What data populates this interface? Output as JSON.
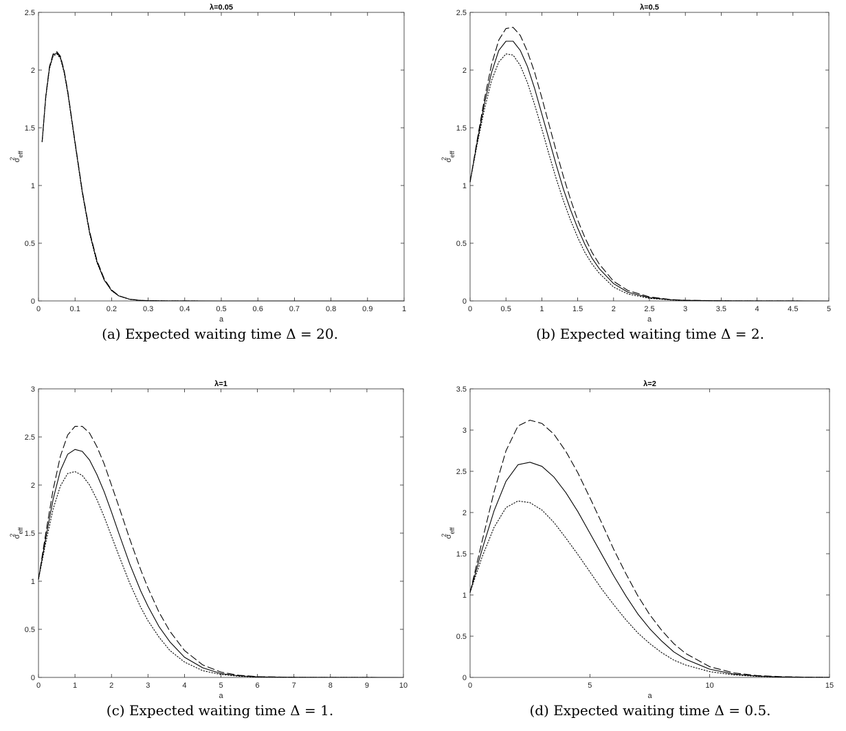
{
  "figures": [
    {
      "caption": "(a)  Expected waiting time Δ = 20.",
      "chart_data": {
        "type": "line",
        "title": "λ=0.05",
        "xlabel": "a",
        "ylabel": "σ",
        "ylabel_sup": "2",
        "ylabel_sub": "eff",
        "xlim": [
          0,
          1
        ],
        "ylim": [
          0,
          2.5
        ],
        "xticks": [
          0,
          0.1,
          0.2,
          0.3,
          0.4,
          0.5,
          0.6,
          0.7,
          0.8,
          0.9,
          1
        ],
        "xticklabels": [
          "0",
          "0.1",
          "0.2",
          "0.3",
          "0.4",
          "0.5",
          "0.6",
          "0.7",
          "0.8",
          "0.9",
          "1"
        ],
        "yticks": [
          0,
          0.5,
          1,
          1.5,
          2,
          2.5
        ],
        "yticklabels": [
          "0",
          "0.5",
          "1",
          "1.5",
          "2",
          "2.5"
        ],
        "grid": false,
        "series": [
          {
            "style": "dashed",
            "x": [
              0.01,
              0.02,
              0.03,
              0.04,
              0.05,
              0.06,
              0.07,
              0.08,
              0.1,
              0.12,
              0.14,
              0.16,
              0.18,
              0.2,
              0.22,
              0.25,
              0.28,
              0.3,
              0.35,
              0.4,
              0.5,
              0.7,
              1.0
            ],
            "y": [
              1.38,
              1.78,
              2.03,
              2.14,
              2.16,
              2.12,
              2.0,
              1.82,
              1.38,
              0.95,
              0.6,
              0.35,
              0.19,
              0.095,
              0.045,
              0.015,
              0.005,
              0.002,
              0.0005,
              0.0001,
              0,
              0,
              0
            ]
          },
          {
            "style": "solid",
            "x": [
              0.01,
              0.02,
              0.03,
              0.04,
              0.05,
              0.06,
              0.07,
              0.08,
              0.1,
              0.12,
              0.14,
              0.16,
              0.18,
              0.2,
              0.22,
              0.25,
              0.28,
              0.3,
              0.35,
              0.4,
              0.5,
              0.7,
              1.0
            ],
            "y": [
              1.38,
              1.77,
              2.02,
              2.13,
              2.15,
              2.11,
              1.99,
              1.81,
              1.37,
              0.94,
              0.59,
              0.34,
              0.18,
              0.09,
              0.043,
              0.014,
              0.004,
              0.002,
              0.0005,
              0.0001,
              0,
              0,
              0
            ]
          },
          {
            "style": "dotted",
            "x": [
              0.01,
              0.02,
              0.03,
              0.04,
              0.05,
              0.06,
              0.07,
              0.08,
              0.1,
              0.12,
              0.14,
              0.16,
              0.18,
              0.2,
              0.22,
              0.25,
              0.28,
              0.3,
              0.35,
              0.4,
              0.5,
              0.7,
              1.0
            ],
            "y": [
              1.38,
              1.76,
              2.01,
              2.12,
              2.14,
              2.1,
              1.98,
              1.8,
              1.36,
              0.93,
              0.58,
              0.33,
              0.18,
              0.088,
              0.042,
              0.013,
              0.004,
              0.002,
              0.0005,
              0.0001,
              0,
              0,
              0
            ]
          }
        ]
      }
    },
    {
      "caption": "(b)  Expected waiting time Δ = 2.",
      "chart_data": {
        "type": "line",
        "title": "λ=0.5",
        "xlabel": "a",
        "ylabel": "σ",
        "ylabel_sup": "2",
        "ylabel_sub": "eff",
        "xlim": [
          0,
          5
        ],
        "ylim": [
          0,
          2.5
        ],
        "xticks": [
          0,
          0.5,
          1,
          1.5,
          2,
          2.5,
          3,
          3.5,
          4,
          4.5,
          5
        ],
        "xticklabels": [
          "0",
          "0.5",
          "1",
          "1.5",
          "2",
          "2.5",
          "3",
          "3.5",
          "4",
          "4.5",
          "5"
        ],
        "yticks": [
          0,
          0.5,
          1,
          1.5,
          2,
          2.5
        ],
        "yticklabels": [
          "0",
          "0.5",
          "1",
          "1.5",
          "2",
          "2.5"
        ],
        "grid": false,
        "series": [
          {
            "style": "dashed",
            "x": [
              0,
              0.1,
              0.2,
              0.3,
              0.4,
              0.5,
              0.6,
              0.7,
              0.8,
              0.9,
              1.0,
              1.1,
              1.2,
              1.3,
              1.4,
              1.5,
              1.6,
              1.7,
              1.8,
              2.0,
              2.2,
              2.5,
              2.8,
              3.0,
              3.5,
              4.0,
              5.0
            ],
            "y": [
              1.03,
              1.4,
              1.75,
              2.05,
              2.26,
              2.36,
              2.37,
              2.3,
              2.16,
              1.98,
              1.76,
              1.53,
              1.3,
              1.08,
              0.88,
              0.7,
              0.55,
              0.42,
              0.32,
              0.17,
              0.09,
              0.035,
              0.012,
              0.006,
              0.001,
              0.0002,
              0
            ]
          },
          {
            "style": "solid",
            "x": [
              0,
              0.1,
              0.2,
              0.3,
              0.4,
              0.5,
              0.6,
              0.7,
              0.8,
              0.9,
              1.0,
              1.1,
              1.2,
              1.3,
              1.4,
              1.5,
              1.6,
              1.7,
              1.8,
              2.0,
              2.2,
              2.5,
              2.8,
              3.0,
              3.5,
              4.0,
              5.0
            ],
            "y": [
              1.03,
              1.38,
              1.71,
              1.98,
              2.17,
              2.25,
              2.25,
              2.17,
              2.03,
              1.84,
              1.62,
              1.4,
              1.18,
              0.97,
              0.79,
              0.63,
              0.49,
              0.37,
              0.28,
              0.15,
              0.075,
              0.028,
              0.01,
              0.005,
              0.001,
              0.0002,
              0
            ]
          },
          {
            "style": "dotted",
            "x": [
              0,
              0.1,
              0.2,
              0.3,
              0.4,
              0.5,
              0.6,
              0.7,
              0.8,
              0.9,
              1.0,
              1.1,
              1.2,
              1.3,
              1.4,
              1.5,
              1.6,
              1.7,
              1.8,
              2.0,
              2.2,
              2.5,
              2.8,
              3.0,
              3.5,
              4.0,
              5.0
            ],
            "y": [
              1.03,
              1.36,
              1.66,
              1.91,
              2.07,
              2.14,
              2.13,
              2.04,
              1.89,
              1.7,
              1.49,
              1.27,
              1.06,
              0.87,
              0.7,
              0.55,
              0.42,
              0.32,
              0.24,
              0.12,
              0.06,
              0.022,
              0.008,
              0.004,
              0.001,
              0.0002,
              0
            ]
          }
        ]
      }
    },
    {
      "caption": "(c)  Expected waiting time Δ = 1.",
      "chart_data": {
        "type": "line",
        "title": "λ=1",
        "xlabel": "a",
        "ylabel": "σ",
        "ylabel_sup": "2",
        "ylabel_sub": "eff",
        "xlim": [
          0,
          10
        ],
        "ylim": [
          0,
          3
        ],
        "xticks": [
          0,
          1,
          2,
          3,
          4,
          5,
          6,
          7,
          8,
          9,
          10
        ],
        "xticklabels": [
          "0",
          "1",
          "2",
          "3",
          "4",
          "5",
          "6",
          "7",
          "8",
          "9",
          "10"
        ],
        "yticks": [
          0,
          0.5,
          1,
          1.5,
          2,
          2.5,
          3
        ],
        "yticklabels": [
          "0",
          "0.5",
          "1",
          "1.5",
          "2",
          "2.5",
          "3"
        ],
        "grid": false,
        "series": [
          {
            "style": "dashed",
            "x": [
              0,
              0.2,
              0.4,
              0.6,
              0.8,
              1.0,
              1.2,
              1.4,
              1.6,
              1.8,
              2.0,
              2.2,
              2.5,
              2.8,
              3.0,
              3.3,
              3.6,
              4.0,
              4.5,
              5.0,
              5.5,
              6.0,
              7.0,
              8.0,
              10.0
            ],
            "y": [
              1.02,
              1.5,
              1.95,
              2.3,
              2.52,
              2.61,
              2.61,
              2.54,
              2.4,
              2.22,
              2.0,
              1.78,
              1.44,
              1.12,
              0.93,
              0.68,
              0.48,
              0.28,
              0.13,
              0.055,
              0.022,
              0.008,
              0.001,
              0.0002,
              0
            ]
          },
          {
            "style": "solid",
            "x": [
              0,
              0.2,
              0.4,
              0.6,
              0.8,
              1.0,
              1.2,
              1.4,
              1.6,
              1.8,
              2.0,
              2.2,
              2.5,
              2.8,
              3.0,
              3.3,
              3.6,
              4.0,
              4.5,
              5.0,
              5.5,
              6.0,
              7.0,
              8.0,
              10.0
            ],
            "y": [
              1.02,
              1.45,
              1.85,
              2.15,
              2.32,
              2.37,
              2.35,
              2.26,
              2.11,
              1.93,
              1.72,
              1.5,
              1.18,
              0.9,
              0.74,
              0.53,
              0.37,
              0.21,
              0.1,
              0.04,
              0.016,
              0.006,
              0.001,
              0.0002,
              0
            ]
          },
          {
            "style": "dotted",
            "x": [
              0,
              0.2,
              0.4,
              0.6,
              0.8,
              1.0,
              1.2,
              1.4,
              1.6,
              1.8,
              2.0,
              2.2,
              2.5,
              2.8,
              3.0,
              3.3,
              3.6,
              4.0,
              4.5,
              5.0,
              5.5,
              6.0,
              7.0,
              8.0,
              10.0
            ],
            "y": [
              1.02,
              1.4,
              1.75,
              1.99,
              2.12,
              2.14,
              2.1,
              2.0,
              1.85,
              1.67,
              1.47,
              1.27,
              0.98,
              0.73,
              0.59,
              0.42,
              0.28,
              0.16,
              0.07,
              0.03,
              0.012,
              0.004,
              0.001,
              0.0002,
              0
            ]
          }
        ]
      }
    },
    {
      "caption": "(d)  Expected waiting time Δ = 0.5.",
      "chart_data": {
        "type": "line",
        "title": "λ=2",
        "xlabel": "a",
        "ylabel": "σ",
        "ylabel_sup": "2",
        "ylabel_sub": "eff",
        "xlim": [
          0,
          15
        ],
        "ylim": [
          0,
          3.5
        ],
        "xticks": [
          0,
          5,
          10,
          15
        ],
        "xticklabels": [
          "0",
          "5",
          "10",
          "15"
        ],
        "yticks": [
          0,
          0.5,
          1,
          1.5,
          2,
          2.5,
          3,
          3.5
        ],
        "yticklabels": [
          "0",
          "0.5",
          "1",
          "1.5",
          "2",
          "2.5",
          "3",
          "3.5"
        ],
        "grid": false,
        "series": [
          {
            "style": "dashed",
            "x": [
              0,
              0.5,
              1.0,
              1.5,
              2.0,
              2.5,
              3.0,
              3.5,
              4.0,
              4.5,
              5.0,
              5.5,
              6.0,
              6.5,
              7.0,
              7.5,
              8.0,
              8.5,
              9.0,
              10.0,
              11.0,
              12.0,
              13.0,
              14.0,
              15.0
            ],
            "y": [
              1.03,
              1.65,
              2.25,
              2.75,
              3.05,
              3.12,
              3.08,
              2.95,
              2.74,
              2.48,
              2.18,
              1.87,
              1.55,
              1.26,
              0.99,
              0.76,
              0.57,
              0.41,
              0.29,
              0.13,
              0.055,
              0.022,
              0.009,
              0.003,
              0.001
            ]
          },
          {
            "style": "solid",
            "x": [
              0,
              0.5,
              1.0,
              1.5,
              2.0,
              2.5,
              3.0,
              3.5,
              4.0,
              4.5,
              5.0,
              5.5,
              6.0,
              6.5,
              7.0,
              7.5,
              8.0,
              8.5,
              9.0,
              10.0,
              11.0,
              12.0,
              13.0,
              14.0,
              15.0
            ],
            "y": [
              1.03,
              1.55,
              2.02,
              2.38,
              2.58,
              2.61,
              2.56,
              2.43,
              2.24,
              2.01,
              1.75,
              1.49,
              1.23,
              0.99,
              0.77,
              0.59,
              0.44,
              0.31,
              0.22,
              0.1,
              0.04,
              0.016,
              0.006,
              0.002,
              0.001
            ]
          },
          {
            "style": "dotted",
            "x": [
              0,
              0.5,
              1.0,
              1.5,
              2.0,
              2.5,
              3.0,
              3.5,
              4.0,
              4.5,
              5.0,
              5.5,
              6.0,
              6.5,
              7.0,
              7.5,
              8.0,
              8.5,
              9.0,
              10.0,
              11.0,
              12.0,
              13.0,
              14.0,
              15.0
            ],
            "y": [
              1.03,
              1.46,
              1.82,
              2.06,
              2.14,
              2.12,
              2.03,
              1.88,
              1.69,
              1.49,
              1.28,
              1.07,
              0.88,
              0.7,
              0.54,
              0.41,
              0.3,
              0.21,
              0.15,
              0.07,
              0.03,
              0.012,
              0.005,
              0.002,
              0.001
            ]
          }
        ]
      }
    }
  ]
}
